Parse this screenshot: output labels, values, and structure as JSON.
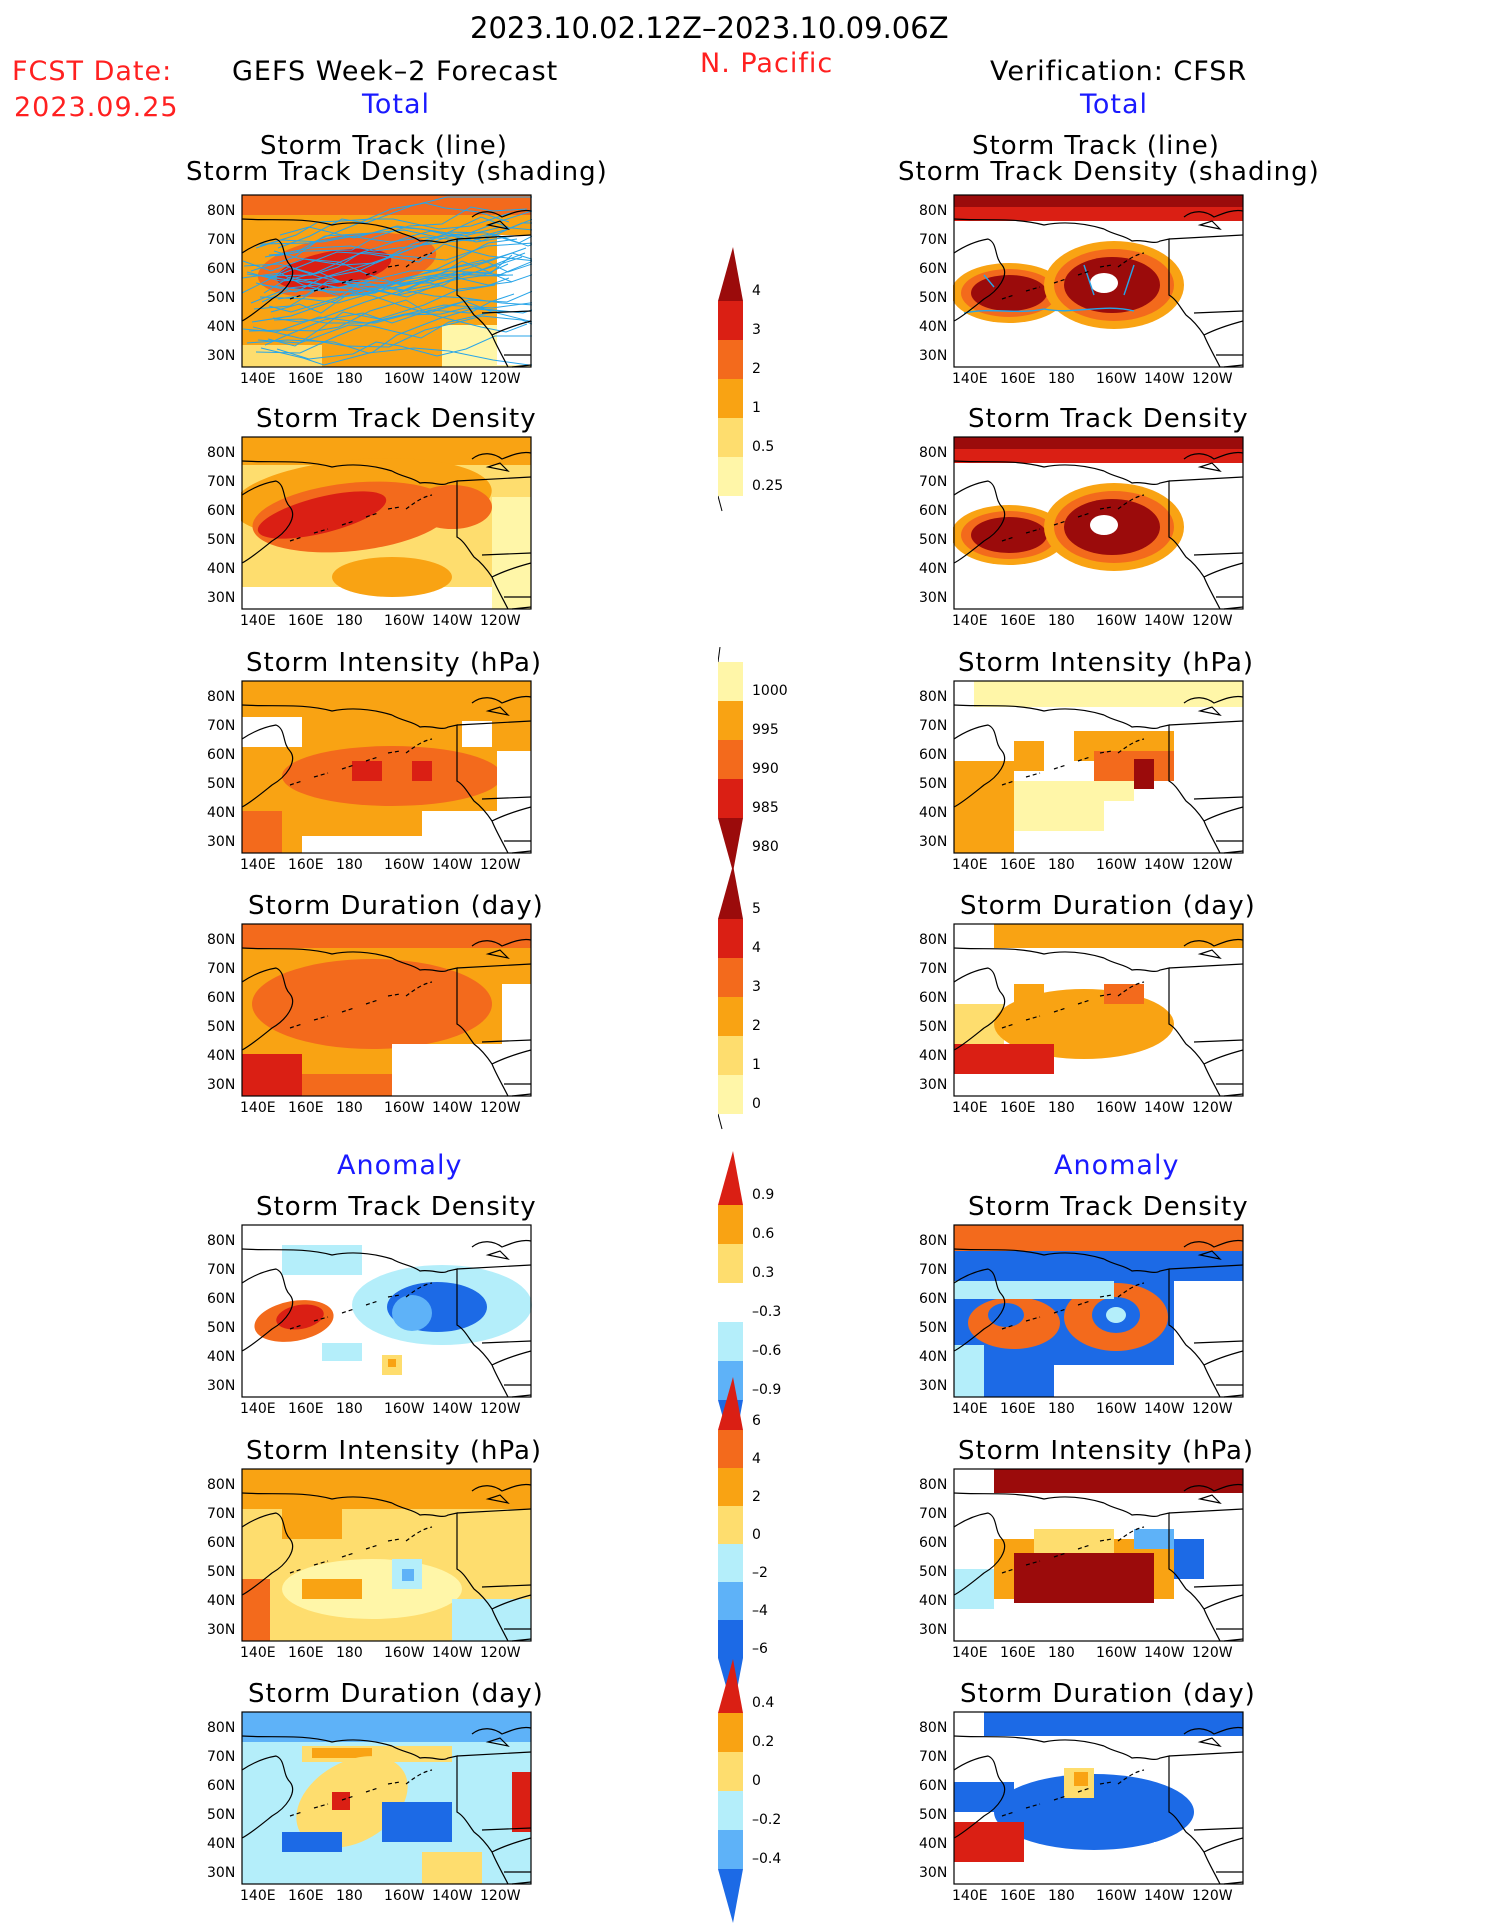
{
  "header": {
    "date_range": "2023.10.02.12Z–2023.10.09.06Z",
    "fcst_label": "FCST Date:",
    "fcst_date": "2023.09.25",
    "region": "N. Pacific",
    "left_title": "GEFS Week–2 Forecast",
    "right_title": "Verification: CFSR",
    "total_label": "Total",
    "anomaly_label": "Anomaly"
  },
  "axes": {
    "lat_ticks": [
      "80N",
      "70N",
      "60N",
      "50N",
      "40N",
      "30N"
    ],
    "lon_ticks": [
      "140E",
      "160E",
      "180",
      "160W",
      "140W",
      "120W"
    ]
  },
  "panels": {
    "track_title_1": "Storm Track (line)",
    "track_title_2": "Storm Track Density (shading)",
    "density": "Storm Track Density",
    "intensity": "Storm Intensity (hPa)",
    "duration": "Storm Duration (day)"
  },
  "colorbars": {
    "density_total": [
      "4",
      "3",
      "2",
      "1",
      "0.5",
      "0.25"
    ],
    "intensity_total": [
      "1000",
      "995",
      "990",
      "985",
      "980"
    ],
    "duration_total": [
      "5",
      "4",
      "3",
      "2",
      "1",
      "0"
    ],
    "density_anom": [
      "0.9",
      "0.6",
      "0.3",
      "–0.3",
      "–0.6",
      "–0.9"
    ],
    "intensity_anom": [
      "6",
      "4",
      "2",
      "0",
      "–2",
      "–4",
      "–6"
    ],
    "duration_anom": [
      "0.4",
      "0.2",
      "0",
      "–0.2",
      "–0.4"
    ]
  },
  "colors": {
    "light_yellow": "#fff6a8",
    "pale_orange": "#fedd6e",
    "orange": "#f9a313",
    "dark_orange": "#f36a1c",
    "red": "#da1f14",
    "dark_red": "#9b0b0b",
    "light_blue": "#b4eefa",
    "mid_blue": "#5eb2f8",
    "blue": "#1c6ae6",
    "track_line": "#28a5e8"
  }
}
